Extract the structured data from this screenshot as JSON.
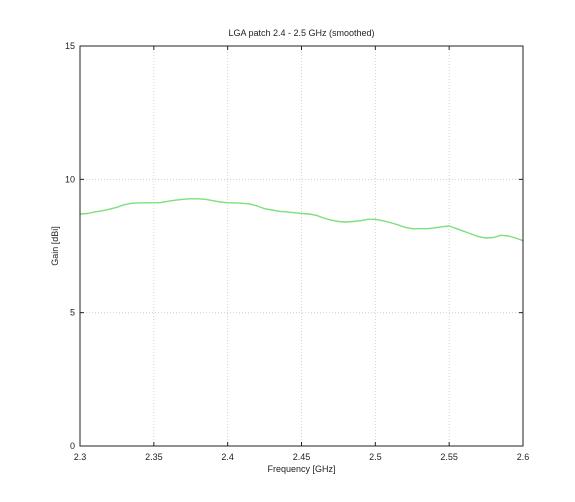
{
  "chart_data": {
    "type": "line",
    "title": "LGA patch 2.4 - 2.5 GHz (smoothed)",
    "xlabel": "Frequency [GHz]",
    "ylabel": "Gain [dBi]",
    "xlim": [
      2.3,
      2.6
    ],
    "ylim": [
      0,
      15
    ],
    "x_ticks": [
      2.3,
      2.35,
      2.4,
      2.45,
      2.5,
      2.55,
      2.6
    ],
    "x_tick_labels": [
      "2.3",
      "2.35",
      "2.4",
      "2.45",
      "2.5",
      "2.55",
      "2.6"
    ],
    "y_ticks": [
      0,
      5,
      10,
      15
    ],
    "y_tick_labels": [
      "0",
      "5",
      "10",
      "15"
    ],
    "grid": true,
    "series": [
      {
        "color": "#7ee07e",
        "x": [
          2.3,
          2.305,
          2.31,
          2.315,
          2.32,
          2.325,
          2.33,
          2.335,
          2.34,
          2.345,
          2.35,
          2.355,
          2.36,
          2.365,
          2.37,
          2.375,
          2.38,
          2.385,
          2.39,
          2.395,
          2.4,
          2.405,
          2.41,
          2.415,
          2.42,
          2.425,
          2.43,
          2.435,
          2.44,
          2.445,
          2.45,
          2.455,
          2.46,
          2.465,
          2.47,
          2.475,
          2.48,
          2.485,
          2.49,
          2.495,
          2.5,
          2.505,
          2.51,
          2.515,
          2.52,
          2.525,
          2.53,
          2.535,
          2.54,
          2.545,
          2.55,
          2.555,
          2.56,
          2.565,
          2.57,
          2.575,
          2.58,
          2.585,
          2.59,
          2.595,
          2.6
        ],
        "y": [
          8.7,
          8.72,
          8.78,
          8.82,
          8.88,
          8.95,
          9.05,
          9.1,
          9.12,
          9.12,
          9.12,
          9.13,
          9.18,
          9.22,
          9.25,
          9.27,
          9.27,
          9.25,
          9.2,
          9.15,
          9.12,
          9.12,
          9.1,
          9.08,
          9.0,
          8.9,
          8.85,
          8.8,
          8.78,
          8.75,
          8.72,
          8.7,
          8.65,
          8.55,
          8.47,
          8.42,
          8.4,
          8.42,
          8.45,
          8.5,
          8.5,
          8.45,
          8.38,
          8.3,
          8.2,
          8.15,
          8.15,
          8.15,
          8.18,
          8.22,
          8.25,
          8.15,
          8.05,
          7.95,
          7.85,
          7.8,
          7.82,
          7.9,
          7.88,
          7.8,
          7.7
        ]
      }
    ]
  }
}
